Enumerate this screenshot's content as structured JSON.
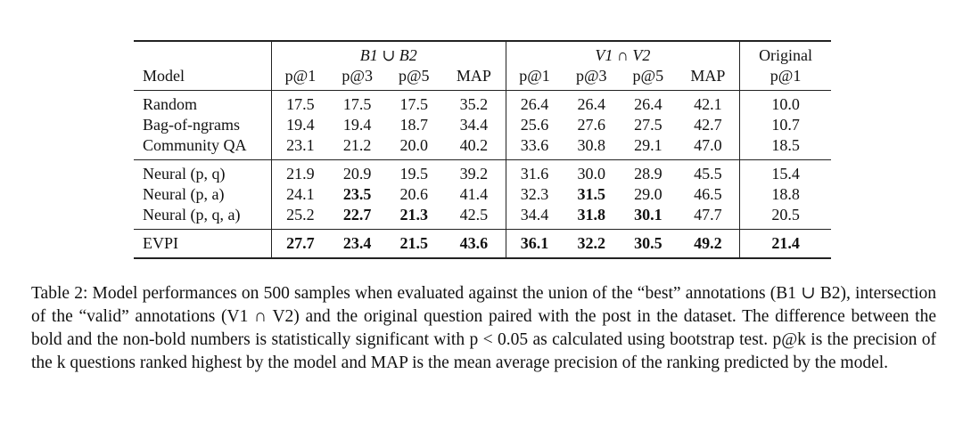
{
  "table": {
    "group_headers": [
      {
        "label": "B1 ∪ B2",
        "span": 4,
        "italic": true
      },
      {
        "label": "V1 ∩ V2",
        "span": 4,
        "italic": true
      },
      {
        "label": "Original",
        "span": 1,
        "italic": false
      }
    ],
    "column_headers": [
      "Model",
      "p@1",
      "p@3",
      "p@5",
      "MAP",
      "p@1",
      "p@3",
      "p@5",
      "MAP",
      "p@1"
    ],
    "groups": [
      {
        "rows": [
          {
            "model": "Random",
            "values": [
              "17.5",
              "17.5",
              "17.5",
              "35.2",
              "26.4",
              "26.4",
              "26.4",
              "42.1",
              "10.0"
            ],
            "bold": []
          },
          {
            "model": "Bag-of-ngrams",
            "values": [
              "19.4",
              "19.4",
              "18.7",
              "34.4",
              "25.6",
              "27.6",
              "27.5",
              "42.7",
              "10.7"
            ],
            "bold": []
          },
          {
            "model": "Community QA",
            "values": [
              "23.1",
              "21.2",
              "20.0",
              "40.2",
              "33.6",
              "30.8",
              "29.1",
              "47.0",
              "18.5"
            ],
            "bold": []
          }
        ]
      },
      {
        "rows": [
          {
            "model": "Neural (p, q)",
            "values": [
              "21.9",
              "20.9",
              "19.5",
              "39.2",
              "31.6",
              "30.0",
              "28.9",
              "45.5",
              "15.4"
            ],
            "bold": []
          },
          {
            "model": "Neural (p, a)",
            "values": [
              "24.1",
              "23.5",
              "20.6",
              "41.4",
              "32.3",
              "31.5",
              "29.0",
              "46.5",
              "18.8"
            ],
            "bold": [
              1,
              5
            ]
          },
          {
            "model": "Neural (p, q, a)",
            "values": [
              "25.2",
              "22.7",
              "21.3",
              "42.5",
              "34.4",
              "31.8",
              "30.1",
              "47.7",
              "20.5"
            ],
            "bold": [
              1,
              2,
              5,
              6
            ]
          }
        ]
      },
      {
        "rows": [
          {
            "model": "EVPI",
            "values": [
              "27.7",
              "23.4",
              "21.5",
              "43.6",
              "36.1",
              "32.2",
              "30.5",
              "49.2",
              "21.4"
            ],
            "bold": [
              0,
              1,
              2,
              3,
              4,
              5,
              6,
              7,
              8
            ]
          }
        ]
      }
    ],
    "caption": "Table 2: Model performances on 500 samples when evaluated against the union of the “best” annotations (B1 ∪ B2), intersection of the “valid” annotations (V1 ∩ V2) and the original question paired with the post in the dataset. The difference between the bold and the non-bold numbers is statistically significant with p < 0.05 as calculated using bootstrap test. p@k is the precision of the k questions ranked highest by the model and MAP is the mean average precision of the ranking predicted by the model."
  }
}
